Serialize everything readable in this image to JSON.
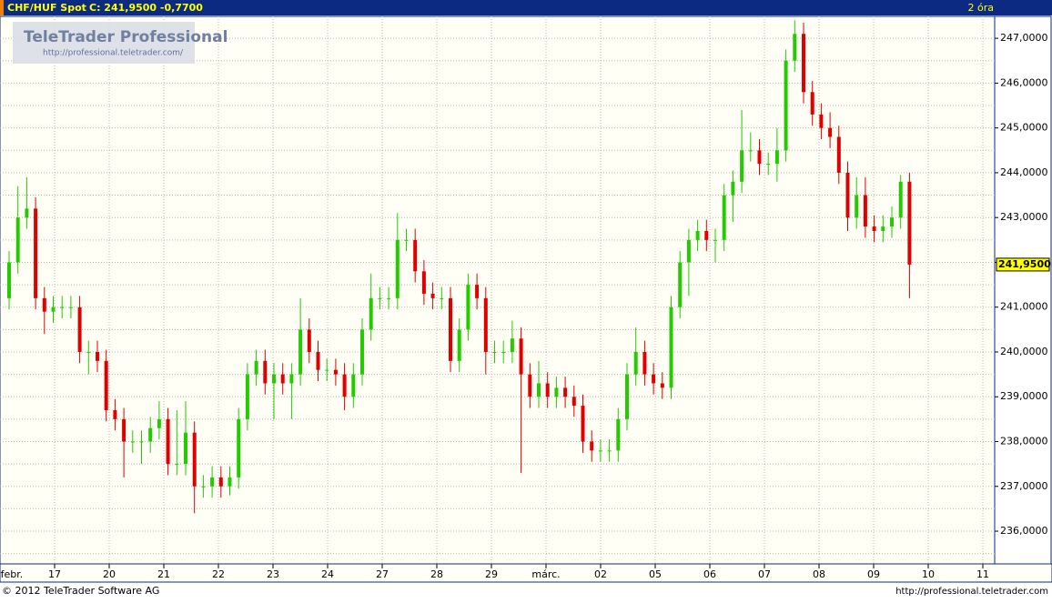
{
  "chart_data": {
    "type": "candlestick",
    "title": "CHF/HUF Spot",
    "quote": "C: 241,9500 -0,7700",
    "interval": "2 óra",
    "logo": {
      "name": "TeleTrader Professional",
      "url": "http://professional.teletrader.com/"
    },
    "footer": {
      "copyright": "© 2012 TeleTrader Software AG",
      "url": "http://professional.teletrader.com"
    },
    "up_color": "#22cc00",
    "down_color": "#e00000",
    "grid": true,
    "ylim": [
      235.27,
      247.49
    ],
    "yticks": [
      {
        "value": 236,
        "label": "236,0000"
      },
      {
        "value": 237,
        "label": "237,0000"
      },
      {
        "value": 238,
        "label": "238,0000"
      },
      {
        "value": 239,
        "label": "239,0000"
      },
      {
        "value": 240,
        "label": "240,0000"
      },
      {
        "value": 241,
        "label": "241,0000"
      },
      {
        "value": 242,
        "label": "242,0000"
      },
      {
        "value": 243,
        "label": "243,0000"
      },
      {
        "value": 244,
        "label": "244,0000"
      },
      {
        "value": 245,
        "label": "245,0000"
      },
      {
        "value": 246,
        "label": "246,0000"
      },
      {
        "value": 247,
        "label": "247,0000"
      }
    ],
    "last": {
      "value": 241.95,
      "label": "241,9500"
    },
    "x_labels": [
      "febr.",
      "17",
      "20",
      "21",
      "22",
      "23",
      "24",
      "27",
      "28",
      "29",
      "márc.",
      "02",
      "05",
      "06",
      "07",
      "08",
      "09",
      "10",
      "11"
    ],
    "ohlc": [
      [
        241.2,
        242.25,
        240.95,
        242.0
      ],
      [
        242.0,
        243.7,
        241.75,
        243.0
      ],
      [
        243.0,
        243.9,
        242.75,
        243.2
      ],
      [
        243.2,
        243.45,
        240.95,
        241.2
      ],
      [
        241.2,
        241.45,
        240.4,
        240.9
      ],
      [
        240.9,
        241.25,
        240.65,
        241.0
      ],
      [
        241.0,
        241.25,
        240.75,
        241.0
      ],
      [
        241.0,
        241.25,
        240.75,
        241.0
      ],
      [
        241.0,
        241.25,
        239.75,
        240.0
      ],
      [
        240.0,
        240.25,
        239.5,
        240.0
      ],
      [
        240.0,
        240.25,
        239.55,
        239.8
      ],
      [
        239.8,
        240.05,
        238.45,
        238.7
      ],
      [
        238.7,
        238.95,
        238.25,
        238.5
      ],
      [
        238.5,
        238.75,
        237.2,
        238.0
      ],
      [
        238.0,
        238.25,
        237.75,
        238.0
      ],
      [
        238.0,
        238.25,
        237.5,
        238.0
      ],
      [
        238.0,
        238.55,
        237.75,
        238.3
      ],
      [
        238.3,
        238.9,
        238.05,
        238.5
      ],
      [
        238.5,
        238.75,
        237.25,
        237.5
      ],
      [
        237.5,
        238.7,
        237.25,
        237.5
      ],
      [
        237.5,
        238.9,
        237.25,
        238.2
      ],
      [
        238.2,
        238.45,
        236.4,
        237.0
      ],
      [
        237.0,
        237.25,
        236.75,
        237.0
      ],
      [
        237.0,
        237.45,
        236.75,
        237.2
      ],
      [
        237.2,
        237.45,
        236.75,
        237.0
      ],
      [
        237.0,
        237.45,
        236.8,
        237.2
      ],
      [
        237.2,
        238.75,
        236.95,
        238.5
      ],
      [
        238.5,
        239.75,
        238.25,
        239.5
      ],
      [
        239.5,
        240.05,
        239.25,
        239.8
      ],
      [
        239.8,
        240.05,
        239.05,
        239.3
      ],
      [
        239.3,
        239.75,
        238.5,
        239.5
      ],
      [
        239.5,
        239.75,
        239.05,
        239.3
      ],
      [
        239.3,
        239.75,
        238.5,
        239.5
      ],
      [
        239.5,
        241.2,
        239.25,
        240.5
      ],
      [
        240.5,
        240.75,
        239.75,
        240.0
      ],
      [
        240.0,
        240.25,
        239.35,
        239.6
      ],
      [
        239.6,
        239.85,
        239.35,
        239.6
      ],
      [
        239.6,
        239.85,
        239.25,
        239.5
      ],
      [
        239.5,
        239.75,
        238.7,
        239.0
      ],
      [
        239.0,
        239.75,
        238.75,
        239.5
      ],
      [
        239.5,
        240.75,
        239.25,
        240.5
      ],
      [
        240.5,
        241.75,
        240.25,
        241.2
      ],
      [
        241.2,
        241.45,
        240.95,
        241.2
      ],
      [
        241.2,
        241.45,
        240.95,
        241.2
      ],
      [
        241.2,
        243.1,
        240.95,
        242.5
      ],
      [
        242.5,
        242.75,
        242.25,
        242.5
      ],
      [
        242.5,
        242.75,
        241.55,
        241.8
      ],
      [
        241.8,
        242.05,
        241.05,
        241.3
      ],
      [
        241.3,
        241.55,
        240.95,
        241.2
      ],
      [
        241.2,
        241.45,
        240.95,
        241.2
      ],
      [
        241.2,
        241.45,
        239.55,
        239.8
      ],
      [
        239.8,
        240.75,
        239.55,
        240.5
      ],
      [
        240.5,
        241.75,
        240.25,
        241.5
      ],
      [
        241.5,
        241.75,
        240.95,
        241.2
      ],
      [
        241.2,
        241.45,
        239.5,
        240.0
      ],
      [
        240.0,
        240.25,
        239.75,
        240.0
      ],
      [
        240.0,
        240.25,
        239.75,
        240.0
      ],
      [
        240.0,
        240.7,
        239.75,
        240.3
      ],
      [
        240.3,
        240.55,
        237.3,
        239.5
      ],
      [
        239.5,
        239.75,
        238.75,
        239.0
      ],
      [
        239.0,
        239.8,
        238.75,
        239.3
      ],
      [
        239.3,
        239.55,
        238.75,
        239.0
      ],
      [
        239.0,
        239.45,
        238.75,
        239.2
      ],
      [
        239.2,
        239.45,
        238.75,
        239.0
      ],
      [
        239.0,
        239.25,
        238.55,
        238.8
      ],
      [
        238.8,
        239.05,
        237.75,
        238.0
      ],
      [
        238.0,
        238.25,
        237.55,
        237.8
      ],
      [
        237.8,
        238.05,
        237.55,
        237.8
      ],
      [
        237.8,
        238.05,
        237.55,
        237.8
      ],
      [
        237.8,
        238.75,
        237.55,
        238.5
      ],
      [
        238.5,
        239.75,
        238.25,
        239.5
      ],
      [
        239.5,
        240.55,
        239.25,
        240.0
      ],
      [
        240.0,
        240.25,
        239.25,
        239.5
      ],
      [
        239.5,
        239.75,
        239.05,
        239.3
      ],
      [
        239.3,
        239.55,
        238.95,
        239.2
      ],
      [
        239.2,
        241.25,
        238.95,
        241.0
      ],
      [
        241.0,
        242.25,
        240.75,
        242.0
      ],
      [
        242.0,
        242.75,
        241.25,
        242.5
      ],
      [
        242.5,
        242.95,
        242.25,
        242.7
      ],
      [
        242.7,
        242.95,
        242.25,
        242.5
      ],
      [
        242.5,
        242.75,
        242.0,
        242.5
      ],
      [
        242.5,
        243.75,
        242.25,
        243.5
      ],
      [
        243.5,
        244.05,
        242.9,
        243.8
      ],
      [
        243.8,
        245.4,
        243.55,
        244.5
      ],
      [
        244.5,
        244.9,
        244.25,
        244.5
      ],
      [
        244.5,
        244.75,
        243.95,
        244.2
      ],
      [
        244.2,
        244.45,
        243.95,
        244.2
      ],
      [
        244.2,
        245.0,
        243.8,
        244.5
      ],
      [
        244.5,
        246.75,
        244.25,
        246.5
      ],
      [
        246.5,
        247.4,
        246.25,
        247.1
      ],
      [
        247.1,
        247.35,
        245.55,
        245.8
      ],
      [
        245.8,
        246.05,
        245.05,
        245.3
      ],
      [
        245.3,
        245.55,
        244.75,
        245.0
      ],
      [
        245.0,
        245.35,
        244.55,
        244.8
      ],
      [
        244.8,
        245.05,
        243.75,
        244.0
      ],
      [
        244.0,
        244.25,
        242.7,
        243.0
      ],
      [
        243.0,
        243.9,
        242.75,
        243.5
      ],
      [
        243.5,
        243.9,
        242.55,
        242.8
      ],
      [
        242.8,
        243.05,
        242.45,
        242.7
      ],
      [
        242.7,
        243.05,
        242.45,
        242.8
      ],
      [
        242.8,
        243.25,
        242.55,
        243.0
      ],
      [
        243.0,
        243.95,
        242.75,
        243.8
      ],
      [
        243.8,
        244.0,
        241.2,
        241.95
      ]
    ]
  }
}
